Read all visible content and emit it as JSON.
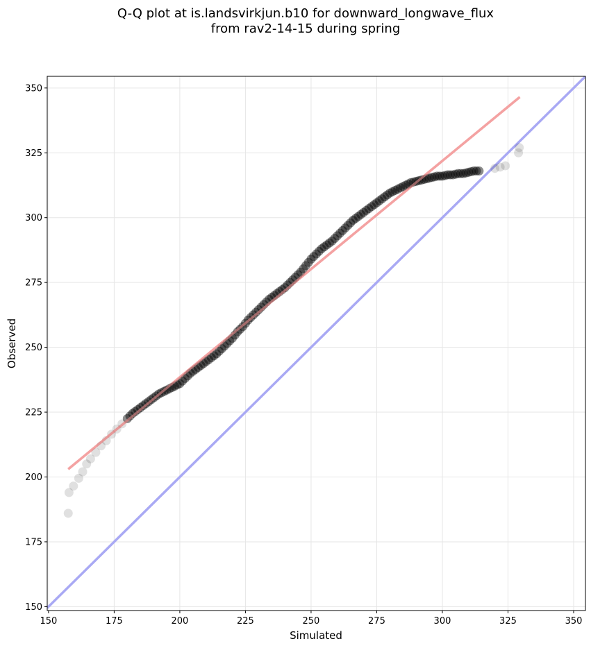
{
  "title": {
    "line1": "Q-Q plot at is.landsvirkjun.b10 for downward_longwave_flux",
    "line2": "from rav2-14-15 during spring"
  },
  "chart_data": {
    "type": "scatter",
    "xlabel": "Simulated",
    "ylabel": "Observed",
    "xlim": [
      149.5,
      354.5
    ],
    "ylim": [
      148.5,
      354.5
    ],
    "xticks": [
      150,
      175,
      200,
      225,
      250,
      275,
      300,
      325,
      350
    ],
    "yticks": [
      150,
      175,
      200,
      225,
      250,
      275,
      300,
      325,
      350
    ],
    "grid": true,
    "colors": {
      "points": "#000000",
      "fit_line": "#f4a3a3",
      "identity_line": "#a9a9f4"
    },
    "fit_line": {
      "x": [
        157.5,
        329.5
      ],
      "y": [
        203,
        346.5
      ]
    },
    "identity_line": {
      "x": [
        149.5,
        354.5
      ],
      "y": [
        149.5,
        354.5
      ]
    },
    "series": [
      {
        "x": [
          157.5,
          157.8,
          159.5,
          161.5,
          163.0,
          164.5,
          166.0,
          168.0,
          170.0,
          172.0,
          174.0,
          176.0,
          178.0,
          180.0,
          182.0,
          184.0,
          186.0,
          188.0,
          190.0,
          192.0,
          194.0,
          196.0,
          198.0,
          200.0,
          202.0,
          204.0,
          206.0,
          208.0,
          210.0,
          212.0,
          214.0,
          216.0,
          218.0,
          220.0,
          222.0,
          224.0,
          226.0,
          228.0,
          230.0,
          232.0,
          234.0,
          236.0,
          238.0,
          240.0,
          242.0,
          244.0,
          246.0,
          248.0,
          250.0,
          252.0,
          254.0,
          256.0,
          258.0,
          260.0,
          262.0,
          264.0,
          266.0,
          268.0,
          270.0,
          272.0,
          274.0,
          276.0,
          278.0,
          280.0,
          282.0,
          284.0,
          286.0,
          288.0,
          290.0,
          292.0,
          294.0,
          296.0,
          298.0,
          300.0,
          302.0,
          304.0,
          306.0,
          308.0,
          310.0,
          312.0,
          314.0,
          320.0,
          322.0,
          324.0,
          329.0,
          329.3
        ],
        "y": [
          186.0,
          194.0,
          196.5,
          199.5,
          202.0,
          205.0,
          207.0,
          209.5,
          212.0,
          214.0,
          216.5,
          218.5,
          220.5,
          222.5,
          224.5,
          226.0,
          227.5,
          229.0,
          230.5,
          232.0,
          233.0,
          234.0,
          235.0,
          236.0,
          238.0,
          240.0,
          241.5,
          243.0,
          244.5,
          246.0,
          247.5,
          249.5,
          251.5,
          253.5,
          256.0,
          258.0,
          260.5,
          262.5,
          264.5,
          266.5,
          268.5,
          270.0,
          271.5,
          273.0,
          275.0,
          277.0,
          279.0,
          281.5,
          284.0,
          286.0,
          288.0,
          289.5,
          291.0,
          293.0,
          295.0,
          297.0,
          299.0,
          300.5,
          302.0,
          303.5,
          305.0,
          306.5,
          308.0,
          309.5,
          310.5,
          311.5,
          312.5,
          313.5,
          314.0,
          314.5,
          315.0,
          315.5,
          316.0,
          316.0,
          316.5,
          316.5,
          317.0,
          317.0,
          317.5,
          318.0,
          318.0,
          319.0,
          319.5,
          320.0,
          325.0,
          327.0
        ]
      }
    ]
  }
}
